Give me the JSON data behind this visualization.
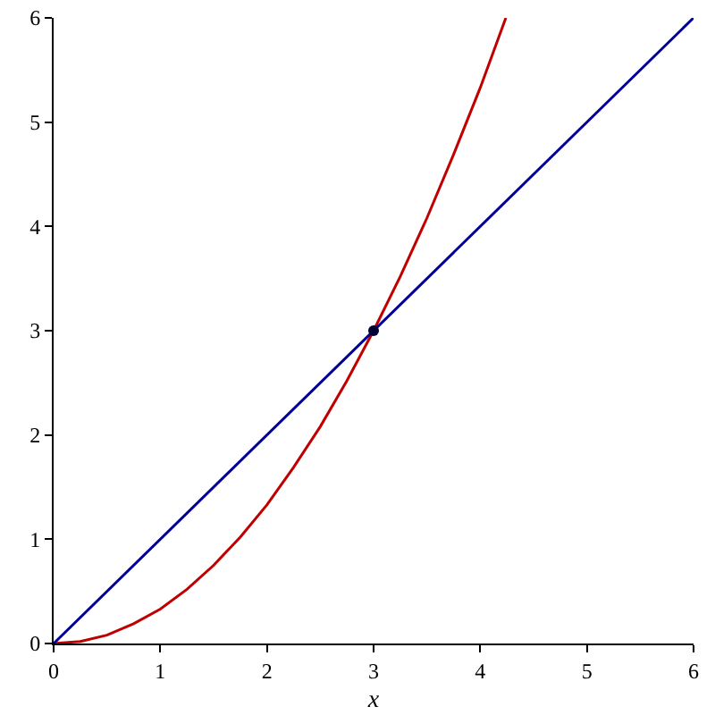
{
  "chart_data": {
    "type": "line",
    "xlabel": "x",
    "xlim": [
      0,
      6
    ],
    "ylim": [
      0,
      6
    ],
    "xticks": [
      0,
      1,
      2,
      3,
      4,
      5,
      6
    ],
    "yticks": [
      0,
      1,
      2,
      3,
      4,
      5,
      6
    ],
    "grid": false,
    "series": [
      {
        "color": "#c00000",
        "x": [
          0,
          0.25,
          0.5,
          0.75,
          1,
          1.25,
          1.5,
          1.75,
          2,
          2.25,
          2.5,
          2.75,
          3,
          3.25,
          3.5,
          3.75,
          4,
          4.24
        ],
        "values": [
          0,
          0.02,
          0.08,
          0.19,
          0.33,
          0.52,
          0.75,
          1.02,
          1.33,
          1.69,
          2.08,
          2.52,
          3,
          3.52,
          4.08,
          4.69,
          5.33,
          6
        ]
      },
      {
        "color": "#000099",
        "x": [
          0,
          6
        ],
        "values": [
          0,
          6
        ]
      },
      {
        "type": "scatter",
        "color": "#000033",
        "x": [
          3
        ],
        "values": [
          3
        ]
      }
    ]
  }
}
